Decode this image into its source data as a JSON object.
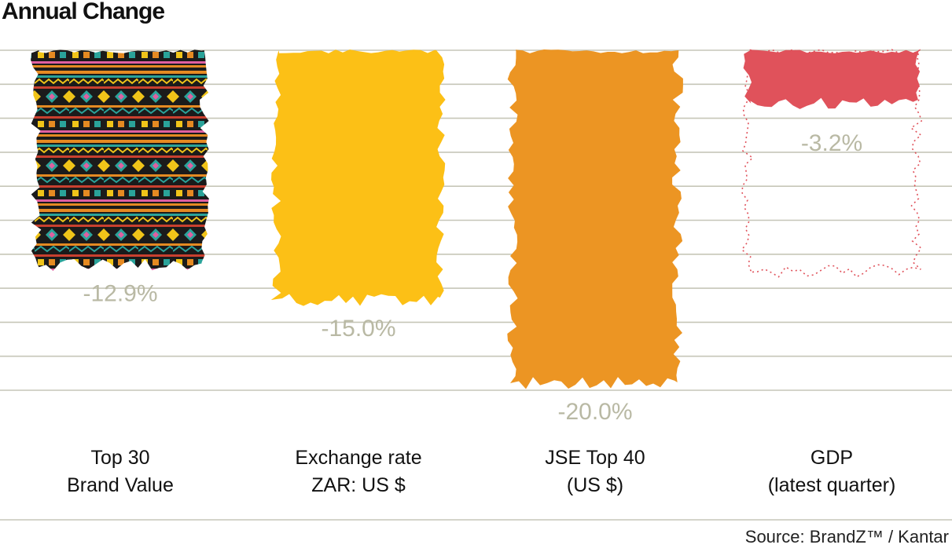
{
  "title": "Annual Change",
  "source": "Source: BrandZ™ / Kantar",
  "chart_data": {
    "type": "bar",
    "title": "Annual Change",
    "categories": [
      [
        "Top 30",
        "Brand Value"
      ],
      [
        "Exchange rate",
        "ZAR: US $"
      ],
      [
        "JSE Top 40",
        "(US $)"
      ],
      [
        "GDP",
        "(latest quarter)"
      ]
    ],
    "values": [
      -12.9,
      -15.0,
      -20.0,
      -3.2
    ],
    "value_labels": [
      "-12.9%",
      "-15.0%",
      "-20.0%",
      "-3.2%"
    ],
    "ylim": [
      -20,
      0
    ],
    "grid": true,
    "colors": {
      "pattern_base": "#1b1b1b",
      "pattern_orange": "#e58a22",
      "pattern_teal": "#2aa39a",
      "pattern_yellow": "#f0c419",
      "pattern_red": "#c9402f",
      "pattern_pink": "#e05fa0",
      "exchange": "#fcc016",
      "jse": "#ec9523",
      "gdp": "#e0525b",
      "value_label": "#b9b9a4",
      "grid": "#c6c6b8"
    }
  }
}
